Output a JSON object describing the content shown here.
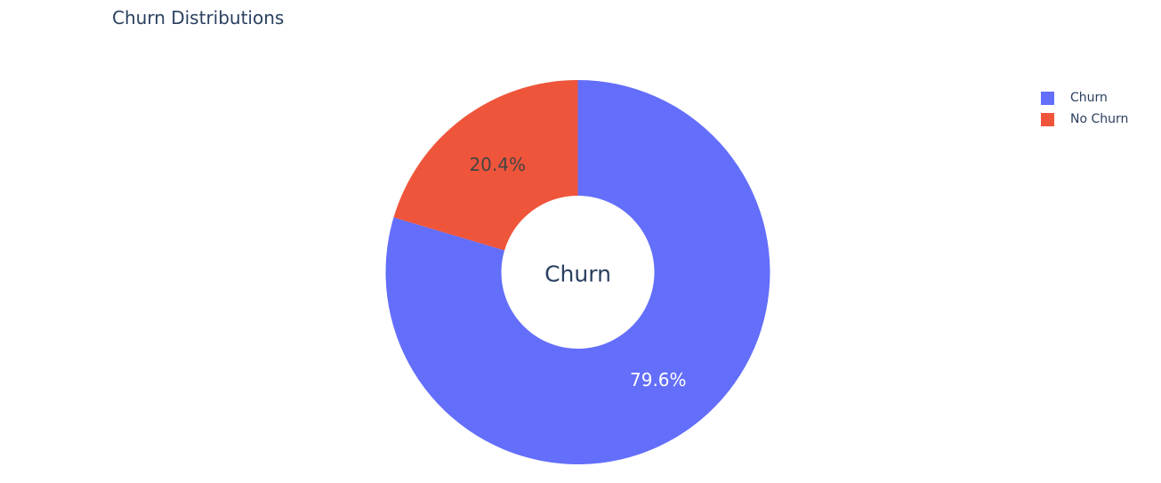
{
  "title": "Churn Distributions",
  "chart_data": {
    "type": "pie",
    "hole": true,
    "center_text": "Churn",
    "slices": [
      {
        "name": "Churn",
        "value": 79.6,
        "label": "79.6%",
        "color": "#636efa",
        "label_color": "#ffffff"
      },
      {
        "name": "No Churn",
        "value": 20.4,
        "label": "20.4%",
        "color": "#ef553b",
        "label_color": "#444444"
      }
    ],
    "legend_placement": "top-right"
  },
  "legend": {
    "items": [
      {
        "label": "Churn",
        "color": "#636efa"
      },
      {
        "label": "No Churn",
        "color": "#ef553b"
      }
    ]
  }
}
